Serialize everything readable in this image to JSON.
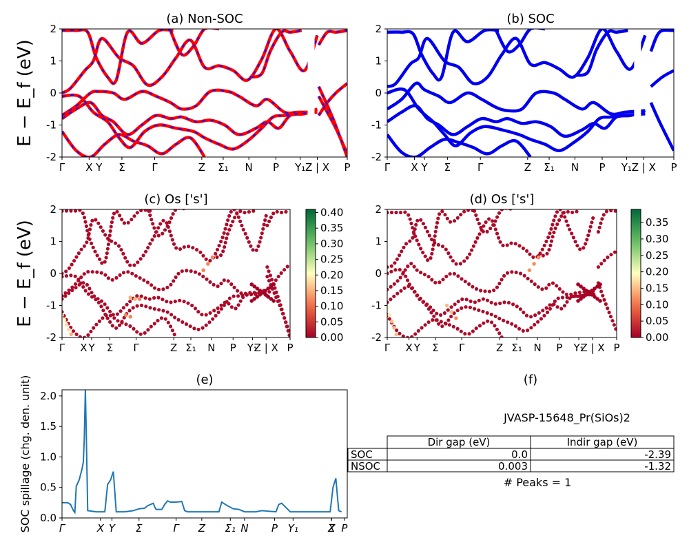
{
  "chart_data": [
    {
      "id": "a",
      "type": "line",
      "title": "(a) Non-SOC",
      "ylabel": "E − E_f (eV)",
      "ylim": [
        -2,
        2
      ],
      "yticks": [
        2,
        1,
        0,
        -1,
        -2
      ],
      "kpath_labels": [
        "Γ",
        "X",
        "Y",
        "Σ",
        "Γ",
        "Z",
        "Σ₁",
        "N",
        "P",
        "Y₁",
        "Z | X",
        "P"
      ],
      "kpath_positions": [
        0,
        0.095,
        0.13,
        0.21,
        0.325,
        0.49,
        0.565,
        0.655,
        0.75,
        0.835,
        0.895,
        1.0
      ],
      "colors": {
        "band": "#ff0000",
        "dash": "#1010ff"
      },
      "bands": [
        {
          "x": [
            0,
            0.03,
            0.08,
            0.11,
            0.14,
            0.2,
            0.25,
            0.3,
            0.35,
            0.4,
            0.45,
            0.5,
            0.55,
            0.6,
            0.65,
            0.7,
            0.75,
            0.8,
            0.85,
            0.895
          ],
          "y": [
            0.0,
            0.15,
            0.7,
            1.0,
            1.7,
            1.1,
            0.85,
            0.25,
            0.5,
            1.1,
            1.65,
            0.8,
            0.85,
            0.7,
            0.4,
            1.05,
            2.0,
            1.3,
            0.7,
            1.8
          ]
        },
        {
          "x": [
            0,
            0.05,
            0.1,
            0.13,
            0.18,
            0.22,
            0.28,
            0.33,
            0.38,
            0.42,
            0.47,
            0.52,
            0.58,
            0.62,
            0.68,
            0.72,
            0.78,
            0.83,
            0.895
          ],
          "y": [
            -0.7,
            -0.4,
            0.0,
            0.05,
            0.0,
            -0.2,
            0.05,
            -0.1,
            -0.3,
            -0.5,
            -0.4,
            0.05,
            0.05,
            -0.1,
            -0.4,
            -0.2,
            -0.6,
            -0.6,
            -0.6
          ]
        },
        {
          "x": [
            0,
            0.05,
            0.1,
            0.14,
            0.18,
            0.23,
            0.28,
            0.33,
            0.38,
            0.42,
            0.47,
            0.52,
            0.57,
            0.62,
            0.68,
            0.72,
            0.76,
            0.8,
            0.85,
            0.895
          ],
          "y": [
            -0.8,
            -0.5,
            -0.3,
            -0.7,
            -0.9,
            -1.3,
            -1.0,
            -0.7,
            -0.8,
            -0.75,
            -0.9,
            -0.85,
            -1.0,
            -1.3,
            -1.1,
            -0.9,
            -1.1,
            -0.7,
            -0.65,
            -0.5
          ]
        },
        {
          "x": [
            0,
            0.06,
            0.11,
            0.16,
            0.2,
            0.24,
            0.29,
            0.34,
            0.4,
            0.46,
            0.5,
            0.55,
            0.6,
            0.65,
            0.7,
            0.74,
            0.78,
            0.83,
            0.895
          ],
          "y": [
            -0.1,
            -0.1,
            -0.6,
            -0.9,
            -1.4,
            -1.7,
            -1.2,
            -1.0,
            -1.1,
            -1.2,
            -1.4,
            -1.6,
            -1.75,
            -1.5,
            -1.1,
            -0.75,
            -0.7,
            -0.65,
            -0.6
          ]
        },
        {
          "x": [
            0,
            0.05,
            0.1,
            0.15,
            0.2,
            0.25,
            0.3,
            0.35,
            0.4,
            0.45,
            0.5
          ],
          "y": [
            -1.2,
            -1.8,
            -2.0,
            -1.6,
            -1.3,
            -1.5,
            -1.65,
            -1.9,
            -1.6,
            -1.4,
            -2.0
          ]
        },
        {
          "x": [
            0,
            0.05,
            0.09,
            0.12,
            0.16,
            0.19,
            0.23,
            0.28,
            0.34,
            0.39
          ],
          "y": [
            1.95,
            1.95,
            1.9,
            1.1,
            0.5,
            0.4,
            1.9,
            1.55,
            1.95,
            1.95
          ]
        },
        {
          "x": [
            0.38,
            0.42,
            0.46,
            0.5,
            0.55
          ],
          "y": [
            1.95,
            1.2,
            1.45,
            2.0,
            2.0
          ]
        },
        {
          "x": [
            0.66,
            0.7,
            0.73,
            0.77,
            0.8,
            0.84
          ],
          "y": [
            0.5,
            0.6,
            1.3,
            1.9,
            1.9,
            1.95
          ]
        },
        {
          "x": [
            0.9,
            0.93,
            0.96,
            1.0
          ],
          "y": [
            1.5,
            1.9,
            1.9,
            1.95
          ]
        },
        {
          "x": [
            0.9,
            0.93,
            0.96,
            1.0
          ],
          "y": [
            -0.1,
            -0.6,
            -1.1,
            -1.9
          ]
        },
        {
          "x": [
            0.9,
            0.93,
            0.96,
            1.0
          ],
          "y": [
            -0.7,
            -0.3,
            0.0,
            0.3
          ]
        },
        {
          "x": [
            0.9,
            0.95,
            1.0
          ],
          "y": [
            0.2,
            -0.8,
            -2.0
          ]
        }
      ]
    },
    {
      "id": "b",
      "type": "line",
      "title": "(b) SOC",
      "ylim": [
        -2,
        2
      ],
      "yticks": [
        2,
        1,
        0,
        -1,
        -2
      ],
      "kpath_labels": [
        "Γ",
        "X",
        "Y",
        "Σ",
        "Γ",
        "Z",
        "Σ₁",
        "N",
        "P",
        "Y₁",
        "Z | X",
        "P"
      ],
      "kpath_positions": [
        0,
        0.095,
        0.13,
        0.21,
        0.325,
        0.49,
        0.565,
        0.655,
        0.75,
        0.835,
        0.895,
        1.0
      ],
      "colors": {
        "band": "#0000ee"
      },
      "bands": [
        {
          "x": [
            0,
            0.03,
            0.08,
            0.11,
            0.14,
            0.2,
            0.25,
            0.3,
            0.35,
            0.4,
            0.45,
            0.5,
            0.55,
            0.6,
            0.65,
            0.7,
            0.75,
            0.8,
            0.85,
            0.9
          ],
          "y": [
            0.2,
            0.3,
            0.9,
            1.1,
            1.7,
            1.0,
            0.8,
            0.3,
            0.5,
            1.2,
            1.7,
            0.9,
            0.95,
            0.75,
            0.5,
            1.1,
            2.0,
            1.3,
            0.75,
            1.8
          ]
        },
        {
          "x": [
            0,
            0.05,
            0.1,
            0.13,
            0.18,
            0.22,
            0.28,
            0.33,
            0.38,
            0.42,
            0.47,
            0.52,
            0.58,
            0.62,
            0.68,
            0.72,
            0.78,
            0.83,
            0.9
          ],
          "y": [
            -0.5,
            -0.2,
            0.3,
            0.1,
            -0.1,
            -0.3,
            0.0,
            -0.2,
            -0.45,
            -0.55,
            -0.5,
            0.0,
            0.0,
            -0.2,
            -0.5,
            -0.3,
            -0.65,
            -0.6,
            -0.55
          ]
        },
        {
          "x": [
            0,
            0.05,
            0.1,
            0.14,
            0.18,
            0.23,
            0.28,
            0.33,
            0.38,
            0.42,
            0.47,
            0.52,
            0.57,
            0.62,
            0.68,
            0.72,
            0.76,
            0.8,
            0.85,
            0.9
          ],
          "y": [
            -0.9,
            -0.6,
            -0.4,
            -0.8,
            -1.0,
            -1.3,
            -1.05,
            -0.8,
            -0.9,
            -0.8,
            -0.95,
            -0.9,
            -1.05,
            -1.35,
            -1.15,
            -0.95,
            -1.1,
            -0.75,
            -0.7,
            -0.55
          ]
        },
        {
          "x": [
            0,
            0.06,
            0.11,
            0.16,
            0.2,
            0.24,
            0.29,
            0.34,
            0.4,
            0.46,
            0.5,
            0.55,
            0.6,
            0.65,
            0.7,
            0.74,
            0.78,
            0.83,
            0.9
          ],
          "y": [
            0.0,
            0.1,
            -0.5,
            -0.9,
            -1.3,
            -1.65,
            -1.25,
            -1.05,
            -1.15,
            -1.3,
            -1.45,
            -1.6,
            -1.8,
            -1.55,
            -1.2,
            -0.8,
            -0.75,
            -0.7,
            -0.65
          ]
        },
        {
          "x": [
            0,
            0.05,
            0.1,
            0.15,
            0.2,
            0.25,
            0.3,
            0.35,
            0.4,
            0.45,
            0.5
          ],
          "y": [
            -1.3,
            -1.85,
            -2.0,
            -1.7,
            -1.45,
            -1.55,
            -1.7,
            -1.9,
            -1.65,
            -1.5,
            -2.0
          ]
        },
        {
          "x": [
            0,
            0.05,
            0.09,
            0.12,
            0.16,
            0.19,
            0.23,
            0.28,
            0.34,
            0.39
          ],
          "y": [
            1.9,
            1.9,
            1.85,
            1.2,
            0.6,
            0.5,
            1.9,
            1.6,
            1.95,
            1.95
          ]
        },
        {
          "x": [
            0.38,
            0.42,
            0.46,
            0.5,
            0.55
          ],
          "y": [
            1.95,
            1.3,
            1.5,
            2.0,
            2.0
          ]
        },
        {
          "x": [
            0.66,
            0.7,
            0.73,
            0.77,
            0.8,
            0.84
          ],
          "y": [
            0.55,
            0.65,
            1.35,
            1.9,
            1.9,
            1.95
          ]
        },
        {
          "x": [
            0.92,
            0.95,
            1.0
          ],
          "y": [
            1.3,
            1.9,
            1.95
          ]
        },
        {
          "x": [
            0.92,
            0.95,
            1.0
          ],
          "y": [
            -0.3,
            -0.9,
            -1.8
          ]
        },
        {
          "x": [
            0.92,
            0.96,
            1.0
          ],
          "y": [
            0.2,
            0.5,
            0.7
          ]
        }
      ]
    },
    {
      "id": "c",
      "type": "scatter",
      "title": "(c)  Os ['s']",
      "ylabel": "E − E_f (eV)",
      "ylim": [
        -2,
        2
      ],
      "yticks": [
        2,
        1,
        0,
        -1,
        -2
      ],
      "kpath_labels": [
        "Γ",
        "X",
        "Y",
        "Σ",
        "Γ",
        "Z",
        "Σ₁",
        "N",
        "P",
        "Y₁",
        "Z | X",
        "P"
      ],
      "kpath_positions": [
        0,
        0.095,
        0.13,
        0.21,
        0.325,
        0.49,
        0.565,
        0.655,
        0.75,
        0.835,
        0.895,
        1.0
      ],
      "colorbar": {
        "min": 0.0,
        "max": 0.41,
        "ticks": [
          "0.00",
          "0.05",
          "0.10",
          "0.15",
          "0.20",
          "0.25",
          "0.30",
          "0.35",
          "0.40"
        ]
      },
      "highlight_points": [
        {
          "x": 0.0,
          "y": -1.3,
          "w": 0.2
        },
        {
          "x": 0.01,
          "y": -1.45,
          "w": 0.2
        },
        {
          "x": 0.02,
          "y": -1.6,
          "w": 0.18
        },
        {
          "x": 0.03,
          "y": -1.75,
          "w": 0.18
        },
        {
          "x": 0.04,
          "y": -1.9,
          "w": 0.15
        },
        {
          "x": 0.3,
          "y": -0.75,
          "w": 0.15
        },
        {
          "x": 0.32,
          "y": -0.8,
          "w": 0.15
        },
        {
          "x": 0.34,
          "y": -0.8,
          "w": 0.12
        },
        {
          "x": 0.28,
          "y": -1.3,
          "w": 0.12
        },
        {
          "x": 0.3,
          "y": -1.35,
          "w": 0.12
        },
        {
          "x": 0.62,
          "y": 0.1,
          "w": 0.12
        },
        {
          "x": 0.64,
          "y": 0.3,
          "w": 0.12
        },
        {
          "x": 0.66,
          "y": 0.5,
          "w": 0.12
        }
      ]
    },
    {
      "id": "d",
      "type": "scatter",
      "title": "(d) Os ['s']",
      "ylim": [
        -2,
        2
      ],
      "yticks": [
        2,
        1,
        0,
        -1,
        -2
      ],
      "kpath_labels": [
        "Γ",
        "X",
        "Y",
        "Σ",
        "Γ",
        "Z",
        "Σ₁",
        "N",
        "P",
        "Y₁",
        "Z | X",
        "P"
      ],
      "kpath_positions": [
        0,
        0.095,
        0.13,
        0.21,
        0.325,
        0.49,
        0.565,
        0.655,
        0.75,
        0.835,
        0.895,
        1.0
      ],
      "colorbar": {
        "min": 0.0,
        "max": 0.39,
        "ticks": [
          "0.00",
          "0.05",
          "0.10",
          "0.15",
          "0.20",
          "0.25",
          "0.30",
          "0.35"
        ]
      },
      "highlight_points": [
        {
          "x": 0.0,
          "y": -1.1,
          "w": 0.2
        },
        {
          "x": 0.01,
          "y": -1.3,
          "w": 0.18
        },
        {
          "x": 0.02,
          "y": -1.5,
          "w": 0.15
        },
        {
          "x": 0.03,
          "y": -1.7,
          "w": 0.15
        },
        {
          "x": 0.04,
          "y": -1.9,
          "w": 0.15
        },
        {
          "x": 0.26,
          "y": -1.0,
          "w": 0.15
        },
        {
          "x": 0.28,
          "y": -1.2,
          "w": 0.15
        },
        {
          "x": 0.3,
          "y": -1.4,
          "w": 0.12
        },
        {
          "x": 0.62,
          "y": 0.1,
          "w": 0.12
        },
        {
          "x": 0.64,
          "y": 0.3,
          "w": 0.12
        },
        {
          "x": 0.66,
          "y": 0.5,
          "w": 0.12
        }
      ]
    },
    {
      "id": "e",
      "type": "line",
      "title": "(e)",
      "ylabel": "SOC spillage (chg. den. unit)",
      "ylim": [
        0,
        2.1
      ],
      "yticks": [
        2.0,
        1.5,
        1.0,
        0.5,
        0.0
      ],
      "ytick_labels": [
        "2.0",
        "1.5",
        "1.0",
        "0.5",
        "0.0"
      ],
      "kpath_labels": [
        "Γ",
        "X",
        "Y",
        "Σ",
        "Γ",
        "Z",
        "Σ₁",
        "N",
        "P",
        "Y₁",
        "Z",
        "X",
        "P"
      ],
      "kpath_positions": [
        0,
        0.135,
        0.175,
        0.27,
        0.4,
        0.49,
        0.59,
        0.64,
        0.745,
        0.81,
        0.945,
        0.945,
        0.99
      ],
      "color": "#1f77b4",
      "x": [
        0,
        0.02,
        0.03,
        0.04,
        0.045,
        0.05,
        0.06,
        0.07,
        0.075,
        0.078,
        0.082,
        0.085,
        0.09,
        0.12,
        0.15,
        0.16,
        0.17,
        0.18,
        0.19,
        0.22,
        0.25,
        0.27,
        0.29,
        0.3,
        0.31,
        0.32,
        0.325,
        0.33,
        0.35,
        0.36,
        0.37,
        0.38,
        0.4,
        0.42,
        0.43,
        0.44,
        0.47,
        0.52,
        0.55,
        0.56,
        0.58,
        0.6,
        0.62,
        0.64,
        0.66,
        0.68,
        0.7,
        0.75,
        0.76,
        0.77,
        0.8,
        0.85,
        0.9,
        0.94,
        0.95,
        0.96,
        0.97,
        0.98
      ],
      "y": [
        0.25,
        0.25,
        0.22,
        0.12,
        0.09,
        0.52,
        0.62,
        0.8,
        0.92,
        1.3,
        2.1,
        1.4,
        0.12,
        0.1,
        0.1,
        0.55,
        0.62,
        0.76,
        0.1,
        0.1,
        0.12,
        0.15,
        0.16,
        0.2,
        0.22,
        0.24,
        0.18,
        0.14,
        0.14,
        0.22,
        0.28,
        0.26,
        0.26,
        0.27,
        0.12,
        0.1,
        0.1,
        0.1,
        0.1,
        0.26,
        0.2,
        0.15,
        0.14,
        0.1,
        0.1,
        0.1,
        0.12,
        0.1,
        0.22,
        0.24,
        0.1,
        0.1,
        0.1,
        0.1,
        0.5,
        0.65,
        0.12,
        0.1
      ]
    }
  ],
  "summary": {
    "title": "(f)",
    "material": "JVASP-15648_Pr(SiOs)2",
    "table": {
      "headers": [
        "",
        "Dir gap (eV)",
        "Indir gap (eV)"
      ],
      "rows": [
        [
          "SOC",
          "0.0",
          "-2.39"
        ],
        [
          "NSOC",
          "0.003",
          "-1.32"
        ]
      ]
    },
    "peaks": "# Peaks = 1"
  }
}
